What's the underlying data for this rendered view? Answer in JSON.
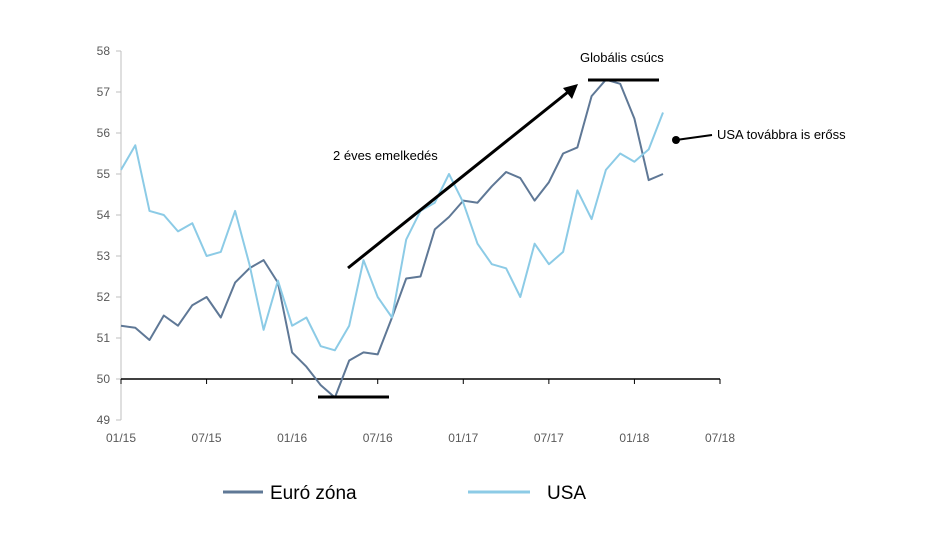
{
  "chart_data": {
    "type": "line",
    "y_ticks": [
      "49",
      "50",
      "51",
      "52",
      "53",
      "54",
      "55",
      "56",
      "57",
      "58"
    ],
    "ylim": [
      49,
      58
    ],
    "x_ticks": [
      "01/15",
      "07/15",
      "01/16",
      "07/16",
      "01/17",
      "07/17",
      "01/18",
      "07/18"
    ],
    "x_months": [
      "2015-01",
      "2018-07"
    ],
    "baseline": 50,
    "grid": false,
    "legend_position": "bottom",
    "series": [
      {
        "name": "Euró zóna",
        "color": "#5f7896",
        "x": [
          "2015-01",
          "2015-02",
          "2015-03",
          "2015-04",
          "2015-05",
          "2015-06",
          "2015-07",
          "2015-08",
          "2015-09",
          "2015-10",
          "2015-11",
          "2015-12",
          "2016-01",
          "2016-02",
          "2016-03",
          "2016-04",
          "2016-05",
          "2016-06",
          "2016-07",
          "2016-08",
          "2016-09",
          "2016-10",
          "2016-11",
          "2016-12",
          "2017-01",
          "2017-02",
          "2017-03",
          "2017-04",
          "2017-05",
          "2017-06",
          "2017-07",
          "2017-08",
          "2017-09",
          "2017-10",
          "2017-11",
          "2017-12",
          "2018-01",
          "2018-02",
          "2018-03",
          "2018-04"
        ],
        "values": [
          51.3,
          51.25,
          50.95,
          51.55,
          51.3,
          51.8,
          52.0,
          51.5,
          52.35,
          52.7,
          52.9,
          52.35,
          50.65,
          50.3,
          49.85,
          49.55,
          50.45,
          50.65,
          50.6,
          51.5,
          52.45,
          52.5,
          53.65,
          53.95,
          54.35,
          54.3,
          54.7,
          55.05,
          54.9,
          54.35,
          54.8,
          55.5,
          55.65,
          56.9,
          57.3,
          57.2,
          56.35,
          54.85,
          55.0,
          null
        ],
        "x_trim": 39
      },
      {
        "name": "USA",
        "color": "#8ccbe6",
        "x": [
          "2015-01",
          "2015-02",
          "2015-03",
          "2015-04",
          "2015-05",
          "2015-06",
          "2015-07",
          "2015-08",
          "2015-09",
          "2015-10",
          "2015-11",
          "2015-12",
          "2016-01",
          "2016-02",
          "2016-03",
          "2016-04",
          "2016-05",
          "2016-06",
          "2016-07",
          "2016-08",
          "2016-09",
          "2016-10",
          "2016-11",
          "2016-12",
          "2017-01",
          "2017-02",
          "2017-03",
          "2017-04",
          "2017-05",
          "2017-06",
          "2017-07",
          "2017-08",
          "2017-09",
          "2017-10",
          "2017-11",
          "2017-12",
          "2018-01",
          "2018-02",
          "2018-03",
          "2018-04"
        ],
        "values": [
          55.1,
          55.7,
          54.1,
          54.0,
          53.6,
          53.8,
          53.0,
          53.1,
          54.1,
          52.8,
          51.2,
          52.4,
          51.3,
          51.5,
          50.8,
          50.7,
          51.3,
          52.9,
          52.0,
          51.5,
          53.4,
          54.1,
          54.3,
          55.0,
          54.3,
          53.3,
          52.8,
          52.7,
          52.0,
          53.3,
          52.8,
          53.1,
          54.6,
          53.9,
          55.1,
          55.5,
          55.3,
          55.6,
          56.5,
          null
        ]
      }
    ],
    "annotations": [
      {
        "id": "global-peak",
        "text": "Globális csúcs"
      },
      {
        "id": "two-year-rise",
        "text": "2 éves emelkedés"
      },
      {
        "id": "usa-strong",
        "text": "USA továbbra is erőss"
      }
    ]
  }
}
